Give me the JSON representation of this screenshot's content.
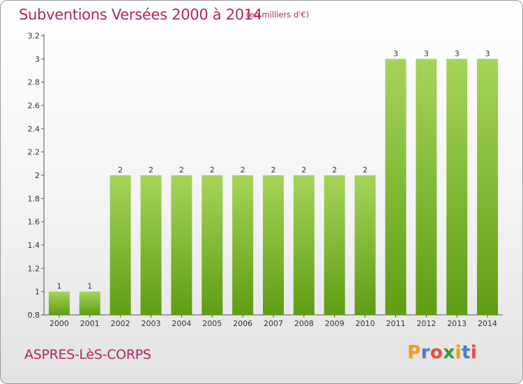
{
  "header": {
    "title": "Subventions Versées 2000 à 2014",
    "subtitle": "(en milliers d'€)"
  },
  "footer": {
    "commune": "ASPRES-LèS-CORPS",
    "logo_letters": [
      "P",
      "r",
      "o",
      "x",
      "i",
      "t",
      "i"
    ],
    "logo_colors": [
      "#f39c1a",
      "#4a7fc0",
      "#e84d3c",
      "#3a9a3a",
      "#f39c1a",
      "#4a7fc0",
      "#e84d3c"
    ]
  },
  "chart_data": {
    "type": "bar",
    "title": "Subventions Versées 2000 à 2014",
    "subtitle": "(en milliers d'€)",
    "xlabel": "",
    "ylabel": "",
    "categories": [
      "2000",
      "2001",
      "2002",
      "2003",
      "2004",
      "2005",
      "2006",
      "2007",
      "2008",
      "2009",
      "2010",
      "2011",
      "2012",
      "2013",
      "2014"
    ],
    "values": [
      1,
      1,
      2,
      2,
      2,
      2,
      2,
      2,
      2,
      2,
      2,
      3,
      3,
      3,
      3
    ],
    "data_labels": [
      "1",
      "1",
      "2",
      "2",
      "2",
      "2",
      "2",
      "2",
      "2",
      "2",
      "2",
      "3",
      "3",
      "3",
      "3"
    ],
    "ylim": [
      0.8,
      3.2
    ],
    "yticks": [
      0.8,
      1,
      1.2,
      1.4,
      1.6,
      1.8,
      2,
      2.2,
      2.4,
      2.6,
      2.8,
      3,
      3.2
    ],
    "ytick_labels": [
      "0.8",
      "1",
      "1.2",
      "1.4",
      "1.6",
      "1.8",
      "2",
      "2.2",
      "2.4",
      "2.6",
      "2.8",
      "3",
      "3.2"
    ],
    "grid": false,
    "legend": "none",
    "bar_color_top": "#a6d45a",
    "bar_color_bottom": "#5f9d14"
  }
}
